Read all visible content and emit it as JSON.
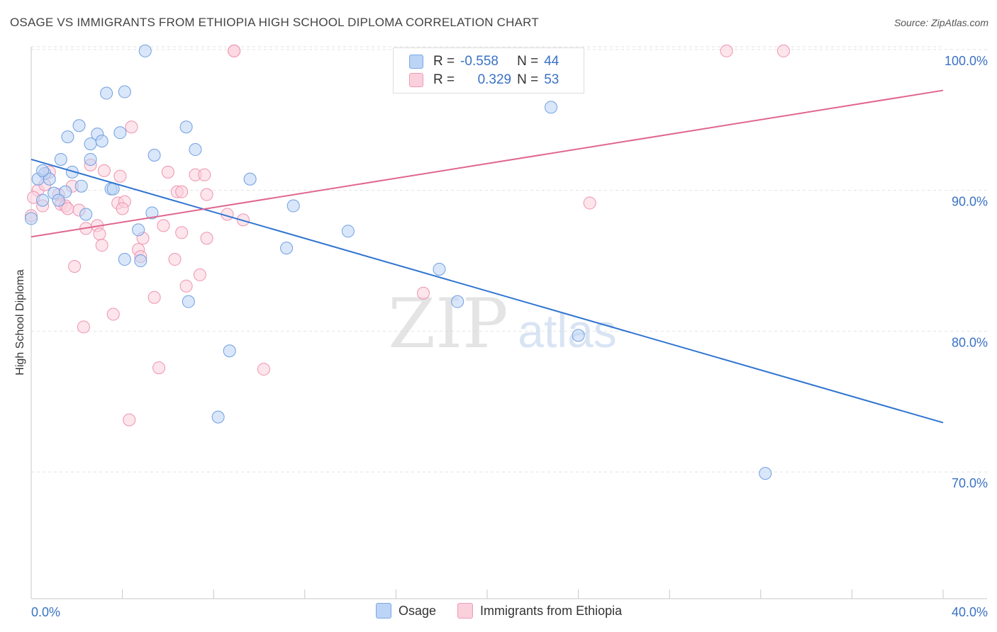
{
  "title": "OSAGE VS IMMIGRANTS FROM ETHIOPIA HIGH SCHOOL DIPLOMA CORRELATION CHART",
  "source": "Source: ZipAtlas.com",
  "watermark": {
    "zip": "ZIP",
    "atlas": "atlas"
  },
  "legend": {
    "rows": [
      {
        "r_label": "R =",
        "r_value": "-0.558",
        "n_label": "N =",
        "n_value": "44"
      },
      {
        "r_label": "R =",
        "r_value": "0.329",
        "n_label": "N =",
        "n_value": "53"
      }
    ],
    "series": [
      "Osage",
      "Immigrants from Ethiopia"
    ]
  },
  "chart_data": {
    "type": "scatter",
    "title": "OSAGE VS IMMIGRANTS FROM ETHIOPIA HIGH SCHOOL DIPLOMA CORRELATION CHART",
    "xlabel": "",
    "ylabel": "High School Diploma",
    "xlim": [
      0,
      40
    ],
    "ylim": [
      61,
      100.5
    ],
    "x_tick_labels": [
      "0.0%",
      "40.0%"
    ],
    "y_tick_values": [
      70,
      80,
      90,
      100
    ],
    "y_tick_labels": [
      "70.0%",
      "80.0%",
      "90.0%",
      "100.0%"
    ],
    "grid": true,
    "colors": {
      "Osage": "#7aa8e8",
      "Immigrants from Ethiopia": "#f19ab5",
      "osage_line": "#2f74d0",
      "ethiopia_line": "#e0668f",
      "tick_label": "#3a72c4"
    },
    "series": [
      {
        "name": "Osage",
        "trend": {
          "x": [
            0,
            40
          ],
          "y": [
            92.2,
            73.5
          ]
        },
        "points": [
          [
            5.0,
            99.9
          ],
          [
            3.3,
            96.9
          ],
          [
            4.1,
            97.0
          ],
          [
            2.1,
            94.6
          ],
          [
            1.6,
            93.8
          ],
          [
            2.6,
            93.3
          ],
          [
            2.9,
            94.0
          ],
          [
            3.1,
            93.5
          ],
          [
            3.9,
            94.1
          ],
          [
            6.8,
            94.5
          ],
          [
            7.2,
            92.9
          ],
          [
            1.3,
            92.2
          ],
          [
            2.6,
            92.2
          ],
          [
            5.4,
            92.5
          ],
          [
            0.6,
            91.2
          ],
          [
            0.3,
            90.8
          ],
          [
            0.8,
            90.8
          ],
          [
            1.8,
            91.3
          ],
          [
            2.2,
            90.3
          ],
          [
            3.5,
            90.1
          ],
          [
            9.6,
            90.8
          ],
          [
            1.0,
            89.8
          ],
          [
            1.5,
            89.9
          ],
          [
            0.5,
            89.3
          ],
          [
            1.2,
            89.3
          ],
          [
            3.6,
            90.1
          ],
          [
            2.4,
            88.3
          ],
          [
            5.3,
            88.4
          ],
          [
            11.5,
            88.9
          ],
          [
            4.7,
            87.2
          ],
          [
            13.9,
            87.1
          ],
          [
            11.2,
            85.9
          ],
          [
            4.1,
            85.1
          ],
          [
            4.8,
            85.0
          ],
          [
            17.9,
            84.4
          ],
          [
            6.9,
            82.1
          ],
          [
            18.7,
            82.1
          ],
          [
            24.0,
            79.7
          ],
          [
            8.7,
            78.6
          ],
          [
            8.2,
            73.9
          ],
          [
            22.8,
            95.9
          ],
          [
            32.2,
            69.9
          ],
          [
            0.0,
            88.0
          ],
          [
            0.5,
            91.4
          ]
        ]
      },
      {
        "name": "Immigrants from Ethiopia",
        "trend": {
          "x": [
            0,
            40
          ],
          "y": [
            86.7,
            97.1
          ]
        },
        "points": [
          [
            8.9,
            99.9
          ],
          [
            8.9,
            99.9
          ],
          [
            30.5,
            99.9
          ],
          [
            33.0,
            99.9
          ],
          [
            4.4,
            94.5
          ],
          [
            2.6,
            91.8
          ],
          [
            3.2,
            91.4
          ],
          [
            3.9,
            91.0
          ],
          [
            6.0,
            91.3
          ],
          [
            7.2,
            91.1
          ],
          [
            7.6,
            91.1
          ],
          [
            0.8,
            91.3
          ],
          [
            0.3,
            90.0
          ],
          [
            1.2,
            89.7
          ],
          [
            1.8,
            90.3
          ],
          [
            6.4,
            89.9
          ],
          [
            6.6,
            89.9
          ],
          [
            7.7,
            89.7
          ],
          [
            0.5,
            88.9
          ],
          [
            1.3,
            89.0
          ],
          [
            1.5,
            88.9
          ],
          [
            1.6,
            88.7
          ],
          [
            3.8,
            89.1
          ],
          [
            4.1,
            89.2
          ],
          [
            4.0,
            88.7
          ],
          [
            2.1,
            88.6
          ],
          [
            8.6,
            88.3
          ],
          [
            9.3,
            87.9
          ],
          [
            24.5,
            89.1
          ],
          [
            2.4,
            87.3
          ],
          [
            2.9,
            87.5
          ],
          [
            3.0,
            86.9
          ],
          [
            5.8,
            87.5
          ],
          [
            6.6,
            87.0
          ],
          [
            3.1,
            86.1
          ],
          [
            4.9,
            86.6
          ],
          [
            7.7,
            86.6
          ],
          [
            4.7,
            85.8
          ],
          [
            4.8,
            85.3
          ],
          [
            6.3,
            85.1
          ],
          [
            1.9,
            84.6
          ],
          [
            7.4,
            84.0
          ],
          [
            6.8,
            83.2
          ],
          [
            5.4,
            82.4
          ],
          [
            17.2,
            82.7
          ],
          [
            3.6,
            81.2
          ],
          [
            2.3,
            80.3
          ],
          [
            5.6,
            77.4
          ],
          [
            10.2,
            77.3
          ],
          [
            4.3,
            73.7
          ],
          [
            0.0,
            88.2
          ],
          [
            0.1,
            89.5
          ],
          [
            0.6,
            90.4
          ]
        ]
      }
    ]
  }
}
